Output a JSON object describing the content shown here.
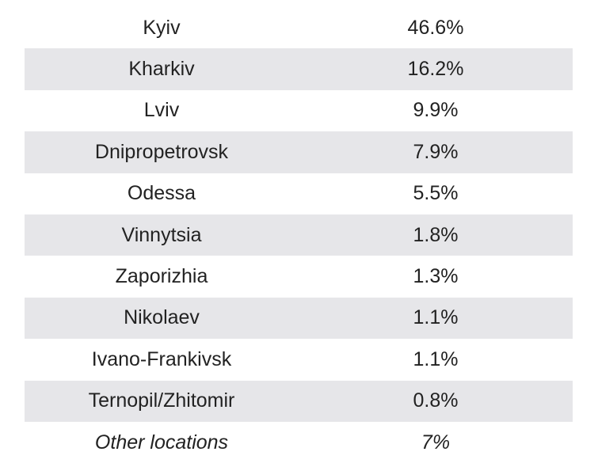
{
  "table": {
    "rows": [
      {
        "name": "Kyiv",
        "value": "46.6%"
      },
      {
        "name": "Kharkiv",
        "value": "16.2%"
      },
      {
        "name": "Lviv",
        "value": "9.9%"
      },
      {
        "name": "Dnipropetrovsk",
        "value": "7.9%"
      },
      {
        "name": "Odessa",
        "value": "5.5%"
      },
      {
        "name": "Vinnytsia",
        "value": "1.8%"
      },
      {
        "name": "Zaporizhia",
        "value": "1.3%"
      },
      {
        "name": "Nikolaev",
        "value": "1.1%"
      },
      {
        "name": "Ivano-Frankivsk",
        "value": "1.1%"
      },
      {
        "name": "Ternopil/Zhitomir",
        "value": "0.8%"
      },
      {
        "name": "Other locations",
        "value": "7%"
      }
    ]
  },
  "colors": {
    "stripe": "#e6e6e9",
    "background": "#ffffff",
    "text": "#222222"
  }
}
